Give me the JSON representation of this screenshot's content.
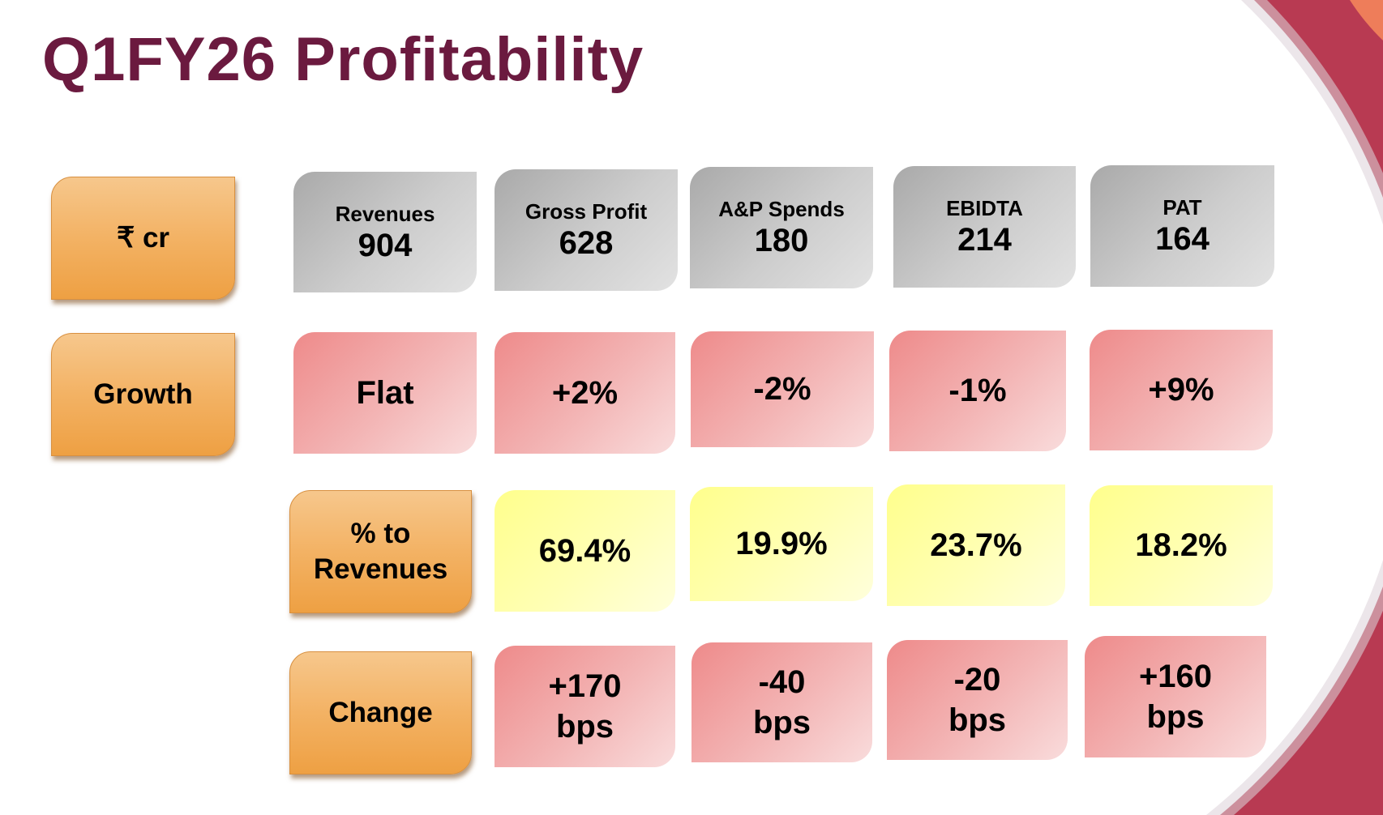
{
  "title": "Q1FY26 Profitability",
  "colors": {
    "title": "#6b1a3f",
    "accent_crimson": "#b83a52",
    "accent_orange": "#ee7d5a"
  },
  "row_labels": {
    "unit": "₹ cr",
    "growth": "Growth",
    "pct_to_revenues": "% to Revenues",
    "change": "Change"
  },
  "metrics": [
    {
      "name": "Revenues",
      "value": "904",
      "growth": "Flat"
    },
    {
      "name": "Gross Profit",
      "value": "628",
      "growth": "+2%",
      "pct": "69.4%",
      "change_num": "+170",
      "change_unit": "bps"
    },
    {
      "name": "A&P Spends",
      "value": "180",
      "growth": "-2%",
      "pct": "19.9%",
      "change_num": "-40",
      "change_unit": "bps"
    },
    {
      "name": "EBIDTA",
      "value": "214",
      "growth": "-1%",
      "pct": "23.7%",
      "change_num": "-20",
      "change_unit": "bps"
    },
    {
      "name": "PAT",
      "value": "164",
      "growth": "+9%",
      "pct": "18.2%",
      "change_num": "+160",
      "change_unit": "bps"
    }
  ]
}
